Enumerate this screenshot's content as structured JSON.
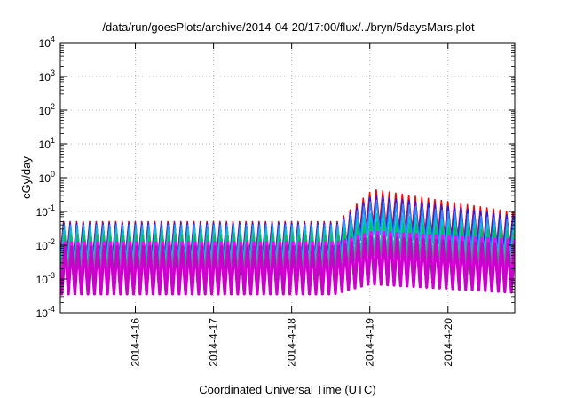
{
  "chart_data": {
    "type": "line",
    "title": "/data/run/goesPlots/archive/2014-04-20/17:00/flux/../bryn/5daysMars.plot",
    "xlabel": "Coordinated Universal Time (UTC)",
    "ylabel": "cGy/day",
    "yscale": "log",
    "ylim": [
      0.0001,
      10000
    ],
    "y_ticks": [
      {
        "value": 0.0001,
        "base": "10",
        "exp": "-4"
      },
      {
        "value": 0.001,
        "base": "10",
        "exp": "-3"
      },
      {
        "value": 0.01,
        "base": "10",
        "exp": "-2"
      },
      {
        "value": 0.1,
        "base": "10",
        "exp": "-1"
      },
      {
        "value": 1,
        "base": "10",
        "exp": "0"
      },
      {
        "value": 10,
        "base": "10",
        "exp": "1"
      },
      {
        "value": 100,
        "base": "10",
        "exp": "2"
      },
      {
        "value": 1000,
        "base": "10",
        "exp": "3"
      },
      {
        "value": 10000,
        "base": "10",
        "exp": "4"
      }
    ],
    "xlim": [
      "2014-04-15T00:58",
      "2014-04-20T20:30"
    ],
    "x_ticks": [
      "2014-4-16",
      "2014-4-17",
      "2014-4-18",
      "2014-4-19",
      "2014-4-20"
    ],
    "grid": true,
    "legend": "none",
    "sawtooth_period_hours": 2,
    "event_onset": "2014-04-18T13:00",
    "event_peak": "2014-04-19T00:00",
    "series": [
      {
        "color": "#ff0000",
        "peak_quiet": 0.05,
        "ratio": 10,
        "peak_event": 0.45,
        "peak_end": 0.09
      },
      {
        "color": "#1c1cff",
        "peak_quiet": 0.045,
        "ratio": 10,
        "peak_event": 0.3,
        "peak_end": 0.07
      },
      {
        "color": "#1e90ff",
        "peak_quiet": 0.04,
        "ratio": 10,
        "peak_event": 0.22,
        "peak_end": 0.05
      },
      {
        "color": "#00c8c8",
        "peak_quiet": 0.03,
        "ratio": 10,
        "peak_event": 0.09,
        "peak_end": 0.035
      },
      {
        "color": "#00c050",
        "peak_quiet": 0.02,
        "ratio": 10,
        "peak_event": 0.05,
        "peak_end": 0.025
      },
      {
        "color": "#ff00ff",
        "peak_quiet": 0.012,
        "ratio": 25,
        "peak_event": 0.025,
        "peak_end": 0.014
      },
      {
        "color": "#cc00cc",
        "peak_quiet": 0.009,
        "ratio": 25,
        "peak_event": 0.018,
        "peak_end": 0.01
      }
    ]
  }
}
